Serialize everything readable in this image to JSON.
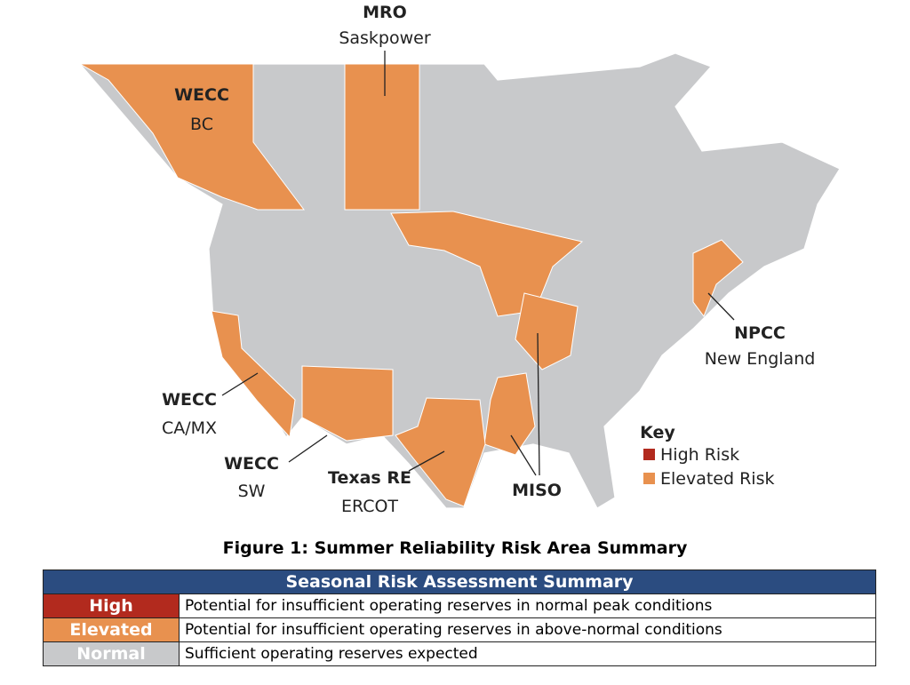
{
  "map": {
    "labels": [
      {
        "region": "MRO",
        "area": "Saskpower"
      },
      {
        "region": "WECC",
        "area": "BC"
      },
      {
        "region": "NPCC",
        "area": "New England"
      },
      {
        "region": "WECC",
        "area": "CA/MX"
      },
      {
        "region": "WECC",
        "area": "SW"
      },
      {
        "region": "Texas RE",
        "area": "ERCOT"
      },
      {
        "region": "MISO"
      }
    ],
    "key": {
      "title": "Key",
      "items": [
        "High Risk",
        "Elevated Risk"
      ]
    }
  },
  "caption": "Figure 1: Summer Reliability Risk Area Summary",
  "table": {
    "header": "Seasonal Risk Assessment Summary",
    "rows": [
      [
        "High",
        "Potential for insufficient operating reserves in normal peak conditions"
      ],
      [
        "Elevated",
        "Potential for insufficient operating reserves in above-normal conditions"
      ],
      [
        "Normal",
        "Sufficient operating reserves expected"
      ]
    ]
  }
}
